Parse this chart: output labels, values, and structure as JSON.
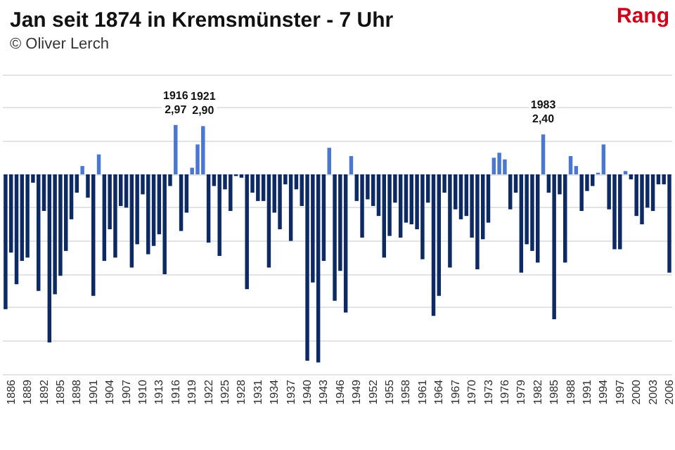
{
  "chart_data": {
    "type": "bar",
    "title": "Jan seit 1874 in Kremsmünster - 7 Uhr",
    "subtitle": "© Oliver Lerch",
    "annotations": [
      "Rang"
    ],
    "categories": [
      null,
      "1886",
      null,
      null,
      "1889",
      null,
      null,
      "1892",
      null,
      null,
      "1895",
      null,
      null,
      "1898",
      null,
      null,
      "1901",
      null,
      null,
      "1904",
      null,
      null,
      "1907",
      null,
      null,
      "1910",
      null,
      null,
      "1913",
      null,
      null,
      "1916",
      null,
      null,
      "1919",
      null,
      null,
      "1922",
      null,
      null,
      "1925",
      null,
      null,
      "1928",
      null,
      null,
      "1931",
      null,
      null,
      "1934",
      null,
      null,
      "1937",
      null,
      null,
      "1940",
      null,
      null,
      "1943",
      null,
      null,
      "1946",
      null,
      null,
      "1949",
      null,
      null,
      "1952",
      null,
      null,
      "1955",
      null,
      null,
      "1958",
      null,
      null,
      "1961",
      null,
      null,
      "1964",
      null,
      null,
      "1967",
      null,
      null,
      "1970",
      null,
      null,
      "1973",
      null,
      null,
      "1976",
      null,
      null,
      "1979",
      null,
      null,
      "1982",
      null,
      null,
      "1985",
      null,
      null,
      "1988",
      null,
      null,
      "1991",
      null,
      null,
      "1994",
      null,
      null,
      "1997",
      null,
      null,
      "2000",
      null,
      null,
      "2003",
      null,
      null,
      "2006"
    ],
    "values": [
      -8.1,
      -4.7,
      -6.6,
      -5.2,
      -5.0,
      -0.5,
      -7.0,
      -2.2,
      -10.1,
      -7.2,
      -6.1,
      -4.6,
      -2.7,
      -1.1,
      0.5,
      -1.4,
      -7.3,
      1.2,
      -5.2,
      -3.3,
      -5.0,
      -1.9,
      -2.0,
      -5.6,
      -4.2,
      -1.2,
      -4.8,
      -4.3,
      -3.6,
      -6.0,
      -0.7,
      2.97,
      -3.4,
      -2.3,
      0.4,
      1.8,
      2.9,
      -4.1,
      -0.7,
      -4.9,
      -0.9,
      -2.2,
      -0.1,
      -0.2,
      -6.9,
      -1.1,
      -1.6,
      -1.6,
      -5.6,
      -2.3,
      -3.3,
      -0.6,
      -4.0,
      -0.9,
      -1.9,
      -11.2,
      -6.5,
      -11.3,
      -5.2,
      1.6,
      -7.6,
      -5.8,
      -8.3,
      1.1,
      -1.6,
      -3.8,
      -1.5,
      -1.9,
      -2.5,
      -5.0,
      -3.7,
      -1.7,
      -3.8,
      -2.9,
      -3.0,
      -3.3,
      -5.1,
      -1.7,
      -8.5,
      -7.3,
      -1.1,
      -5.6,
      -2.1,
      -2.7,
      -2.5,
      -3.8,
      -5.7,
      -3.9,
      -2.9,
      1.0,
      1.3,
      0.9,
      -2.1,
      -1.1,
      -5.9,
      -4.2,
      -4.6,
      -5.3,
      2.4,
      -1.1,
      -8.7,
      -1.2,
      -5.3,
      1.1,
      0.5,
      -2.2,
      -1.0,
      -0.7,
      0.1,
      1.8,
      -2.1,
      -4.5,
      -4.5,
      0.2,
      -0.3,
      -2.5,
      -3.0,
      -2.0,
      -2.2,
      -0.6,
      -0.6,
      -5.9
    ],
    "value_labels": [
      null,
      null,
      null,
      null,
      null,
      null,
      null,
      null,
      null,
      null,
      null,
      null,
      null,
      null,
      null,
      null,
      null,
      null,
      null,
      null,
      null,
      null,
      null,
      null,
      null,
      null,
      null,
      null,
      null,
      null,
      null,
      "1916\n2,97",
      null,
      null,
      null,
      null,
      "1921\n2,90",
      null,
      null,
      null,
      null,
      null,
      null,
      null,
      null,
      null,
      null,
      null,
      null,
      null,
      null,
      null,
      null,
      null,
      null,
      null,
      null,
      null,
      null,
      null,
      null,
      null,
      null,
      null,
      null,
      null,
      null,
      null,
      null,
      null,
      null,
      null,
      null,
      null,
      null,
      null,
      null,
      null,
      null,
      null,
      null,
      null,
      null,
      null,
      null,
      null,
      null,
      null,
      null,
      null,
      null,
      null,
      null,
      null,
      null,
      null,
      null,
      null,
      "1983\n2,40",
      null,
      null,
      null,
      null,
      null,
      null,
      null,
      null,
      null,
      null,
      null,
      null,
      null,
      null,
      null,
      null,
      null,
      null,
      null,
      null,
      null,
      null,
      null
    ],
    "colors": [
      "#0d2a64",
      "#0d2a64",
      "#0d2a64",
      "#0d2a64",
      "#0d2a64",
      "#0d2a64",
      "#0d2a64",
      "#0d2a64",
      "#0d2a64",
      "#0d2a64",
      "#0d2a64",
      "#0d2a64",
      "#0d2a64",
      "#0d2a64",
      "#4a78d0",
      "#0d2a64",
      "#0d2a64",
      "#4a78d0",
      "#0d2a64",
      "#0d2a64",
      "#0d2a64",
      "#0d2a64",
      "#0d2a64",
      "#0d2a64",
      "#0d2a64",
      "#0d2a64",
      "#0d2a64",
      "#0d2a64",
      "#0d2a64",
      "#0d2a64",
      "#0d2a64",
      "#4a78d0",
      "#0d2a64",
      "#0d2a64",
      "#4a78d0",
      "#4a78d0",
      "#4a78d0",
      "#0d2a64",
      "#0d2a64",
      "#0d2a64",
      "#0d2a64",
      "#0d2a64",
      "#0d2a64",
      "#0d2a64",
      "#0d2a64",
      "#0d2a64",
      "#0d2a64",
      "#0d2a64",
      "#0d2a64",
      "#0d2a64",
      "#0d2a64",
      "#0d2a64",
      "#0d2a64",
      "#0d2a64",
      "#0d2a64",
      "#0d2a64",
      "#0d2a64",
      "#0d2a64",
      "#0d2a64",
      "#4a78d0",
      "#0d2a64",
      "#0d2a64",
      "#0d2a64",
      "#4a78d0",
      "#0d2a64",
      "#0d2a64",
      "#0d2a64",
      "#0d2a64",
      "#0d2a64",
      "#0d2a64",
      "#0d2a64",
      "#0d2a64",
      "#0d2a64",
      "#0d2a64",
      "#0d2a64",
      "#0d2a64",
      "#0d2a64",
      "#0d2a64",
      "#0d2a64",
      "#0d2a64",
      "#0d2a64",
      "#0d2a64",
      "#0d2a64",
      "#0d2a64",
      "#0d2a64",
      "#0d2a64",
      "#0d2a64",
      "#0d2a64",
      "#0d2a64",
      "#4a78d0",
      "#4a78d0",
      "#4a78d0",
      "#0d2a64",
      "#0d2a64",
      "#0d2a64",
      "#0d2a64",
      "#0d2a64",
      "#0d2a64",
      "#4a78d0",
      "#0d2a64",
      "#0d2a64",
      "#0d2a64",
      "#0d2a64",
      "#4a78d0",
      "#4a78d0",
      "#0d2a64",
      "#0d2a64",
      "#0d2a64",
      "#4a78d0",
      "#4a78d0",
      "#0d2a64",
      "#0d2a64",
      "#0d2a64",
      "#4a78d0",
      "#0d2a64",
      "#0d2a64",
      "#0d2a64",
      "#0d2a64",
      "#0d2a64",
      "#0d2a64",
      "#0d2a64",
      "#0d2a64"
    ],
    "ylim": [
      -12,
      6
    ],
    "yticks": [
      {
        "value": -12,
        "label": null
      },
      {
        "value": -10,
        "label": null
      },
      {
        "value": -8,
        "label": null
      },
      {
        "value": -6,
        "label": null
      },
      {
        "value": -4,
        "label": null
      },
      {
        "value": -2,
        "label": null
      },
      {
        "value": 0,
        "label": null
      },
      {
        "value": 2,
        "label": null
      },
      {
        "value": 4,
        "label": null
      },
      {
        "value": 6,
        "label": null
      }
    ],
    "tick_labels": "x",
    "grid": "y"
  }
}
